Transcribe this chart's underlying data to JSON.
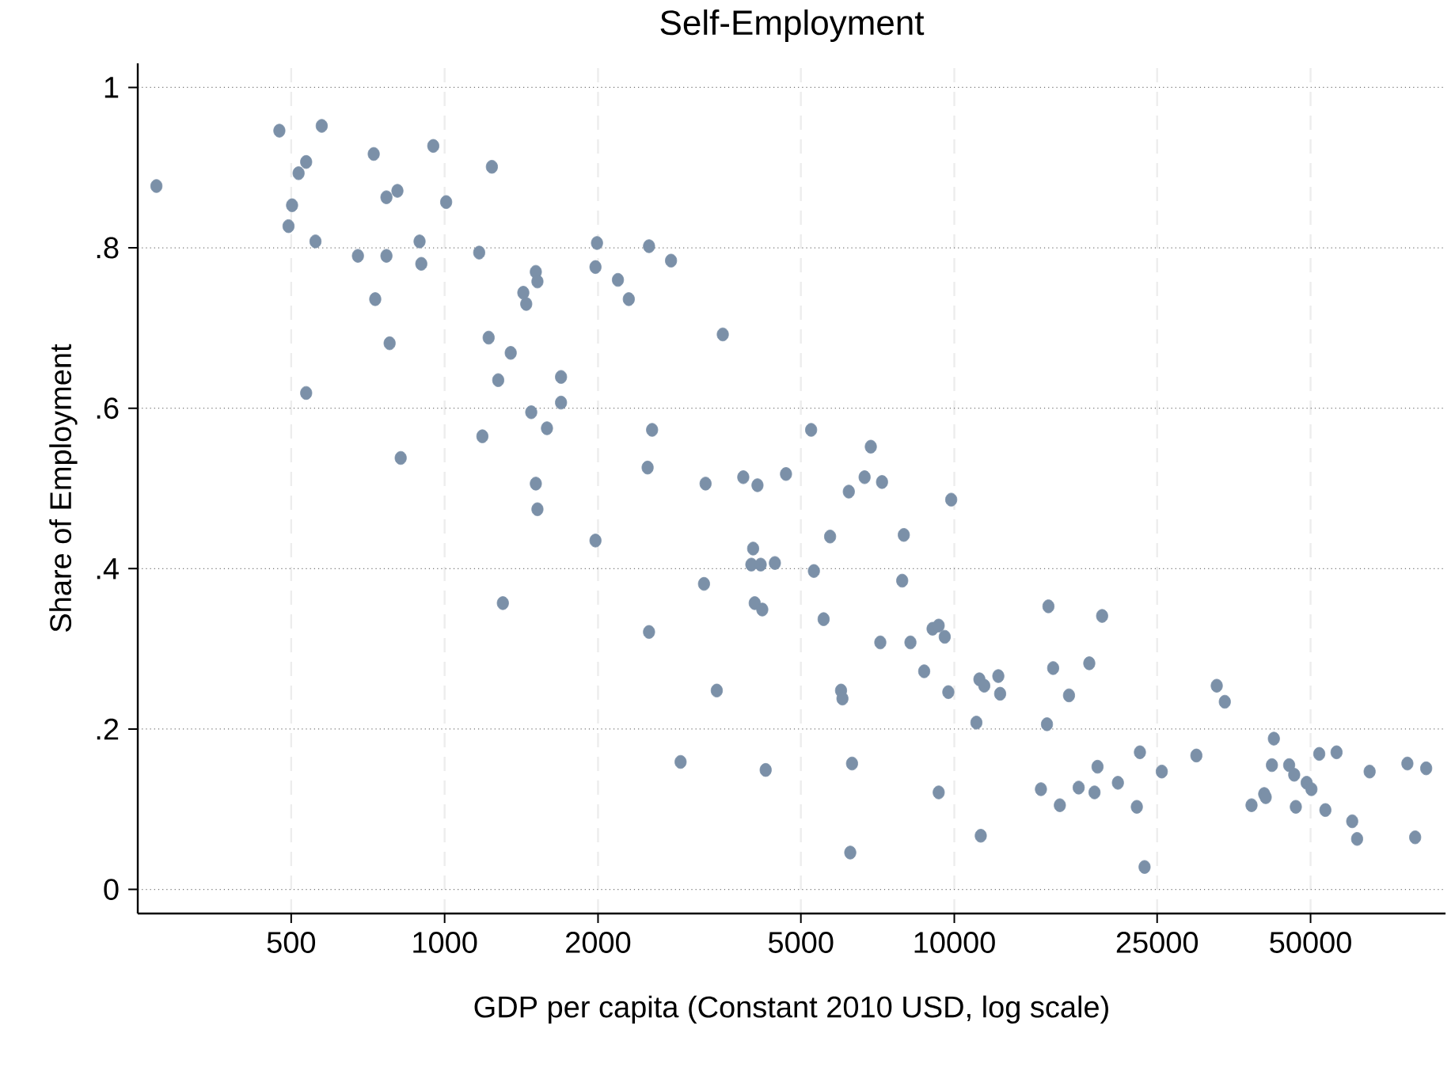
{
  "chart_data": {
    "type": "scatter",
    "title": "Self-Employment",
    "xlabel": "GDP per capita (Constant 2010 USD, log scale)",
    "ylabel": "Share of Employment",
    "log": "x",
    "xlim": [
      250,
      92000
    ],
    "ylim": [
      -0.03,
      1.03
    ],
    "xticks": [
      500,
      1000,
      2000,
      5000,
      10000,
      25000,
      50000
    ],
    "yticks": [
      0,
      {
        "value": 0.2,
        "label": ".2"
      },
      {
        "value": 0.4,
        "label": ".4"
      },
      {
        "value": 0.6,
        "label": ".6"
      },
      {
        "value": 0.8,
        "label": ".8"
      },
      1
    ],
    "grid": true,
    "marker": "circle",
    "color": "#7b90a8",
    "x": [
      272,
      474,
      574,
      517,
      535,
      502,
      494,
      558,
      535,
      726,
      950,
      1238,
      769,
      808,
      1007,
      676,
      769,
      893,
      900,
      1169,
      731,
      780,
      820,
      1220,
      1348,
      1274,
      1186,
      1510,
      1521,
      1427,
      1446,
      1692,
      1692,
      1479,
      1588,
      1510,
      1521,
      1301,
      1991,
      1977,
      1977,
      2518,
      2188,
      2298,
      2781,
      3514,
      2553,
      2502,
      3251,
      3855,
      4110,
      4675,
      3228,
      4030,
      3998,
      4170,
      4446,
      4059,
      4200,
      2518,
      3420,
      2904,
      4265,
      5237,
      6858,
      6668,
      7215,
      6209,
      9861,
      5706,
      7961,
      5303,
      7904,
      5541,
      7159,
      8202,
      9065,
      9319,
      9577,
      8728,
      5995,
      6033,
      9733,
      11200,
      11450,
      12200,
      12300,
      11050,
      6300,
      9319,
      6250,
      11270,
      15300,
      19500,
      15630,
      18400,
      16790,
      15200,
      14790,
      16110,
      17540,
      18840,
      19100,
      20940,
      23130,
      22810,
      23620,
      25530,
      29850,
      32730,
      33940,
      42360,
      41990,
      38300,
      40550,
      40830,
      45390,
      46440,
      46780,
      49120,
      50200,
      52000,
      56230,
      53460,
      60350,
      61700,
      65300,
      77450,
      84300,
      80200
    ],
    "values": [
      0.877,
      0.946,
      0.952,
      0.893,
      0.907,
      0.853,
      0.827,
      0.808,
      0.619,
      0.917,
      0.927,
      0.901,
      0.863,
      0.871,
      0.857,
      0.79,
      0.79,
      0.808,
      0.78,
      0.794,
      0.736,
      0.681,
      0.538,
      0.688,
      0.669,
      0.635,
      0.565,
      0.77,
      0.758,
      0.744,
      0.73,
      0.639,
      0.607,
      0.595,
      0.575,
      0.506,
      0.474,
      0.357,
      0.806,
      0.776,
      0.435,
      0.802,
      0.76,
      0.736,
      0.784,
      0.692,
      0.573,
      0.526,
      0.506,
      0.514,
      0.504,
      0.518,
      0.381,
      0.425,
      0.405,
      0.405,
      0.407,
      0.357,
      0.349,
      0.321,
      0.248,
      0.159,
      0.149,
      0.573,
      0.552,
      0.514,
      0.508,
      0.496,
      0.486,
      0.44,
      0.442,
      0.397,
      0.385,
      0.337,
      0.308,
      0.308,
      0.325,
      0.329,
      0.315,
      0.272,
      0.248,
      0.238,
      0.246,
      0.262,
      0.254,
      0.266,
      0.244,
      0.208,
      0.157,
      0.121,
      0.046,
      0.067,
      0.353,
      0.341,
      0.276,
      0.282,
      0.242,
      0.206,
      0.125,
      0.105,
      0.127,
      0.121,
      0.153,
      0.133,
      0.171,
      0.103,
      0.028,
      0.147,
      0.167,
      0.254,
      0.234,
      0.188,
      0.155,
      0.105,
      0.119,
      0.115,
      0.155,
      0.143,
      0.103,
      0.133,
      0.125,
      0.169,
      0.171,
      0.099,
      0.085,
      0.063,
      0.147,
      0.157,
      0.151,
      0.065
    ]
  }
}
